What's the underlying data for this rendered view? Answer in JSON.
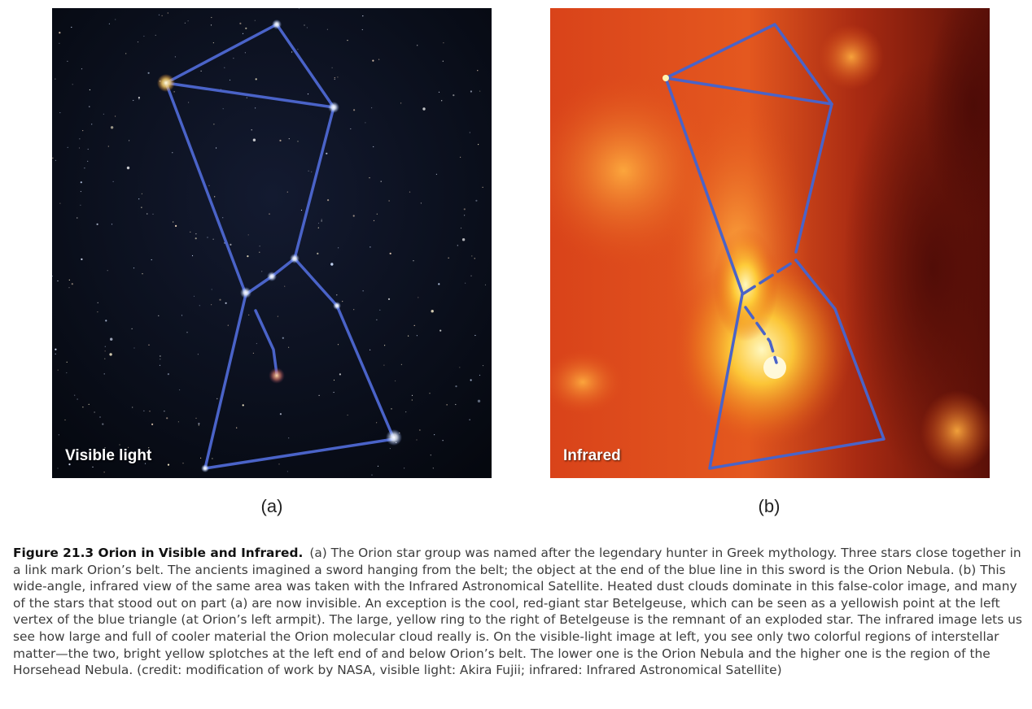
{
  "panel_a": {
    "label": "Visible light",
    "sub_label": "(a)"
  },
  "panel_b": {
    "label": "Infrared",
    "sub_label": "(b)"
  },
  "caption": {
    "title": "Figure 21.3 Orion in Visible and Infrared.",
    "text": "(a) The Orion star group was named after the legendary hunter in Greek mythology. Three stars close together in a link mark Orion’s belt. The ancients imagined a sword hanging from the belt; the object at the end of the blue line in this sword is the Orion Nebula. (b) This wide-angle, infrared view of the same area was taken with the Infrared Astronomical Satellite. Heated dust clouds dominate in this false-color image, and many of the stars that stood out on part (a) are now invisible. An exception is the cool, red-giant star Betelgeuse, which can be seen as a yellowish point at the left vertex of the blue triangle (at Orion’s left armpit). The large, yellow ring to the right of Betelgeuse is the remnant of an exploded star. The infrared image lets us see how large and full of cooler material the Orion molecular cloud really is. On the visible-light image at left, you see only two colorful regions of interstellar matter—the two, bright yellow splotches at the left end of and below Orion’s belt. The lower one is the Orion Nebula and the higher one is the region of the Horsehead Nebula. (credit: modification of work by NASA, visible light: Akira Fujii; infrared: Infrared Astronomical Satellite)"
  },
  "colors": {
    "constellation_line": "#4a63c8",
    "visible_sky": "#0a0f1e",
    "infrared_base": "#c53a16",
    "infrared_glow": "#ffd23a"
  }
}
